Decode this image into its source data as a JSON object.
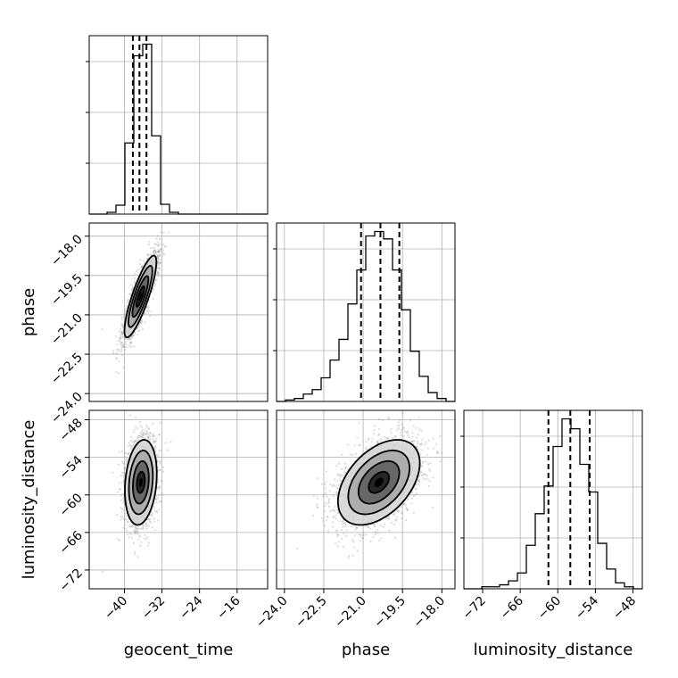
{
  "chart_data": {
    "type": "corner",
    "grid": true,
    "parameters": [
      "geocent_time",
      "phase",
      "luminosity_distance"
    ],
    "axes": {
      "geocent_time": {
        "label": "geocent_time",
        "range": [
          -47.5,
          -9.5
        ],
        "ticks": [
          -40,
          -32,
          -24,
          -16
        ],
        "tick_labels": [
          "−40",
          "−32",
          "−24",
          "−16"
        ]
      },
      "phase": {
        "label": "phase",
        "range": [
          -24.3,
          -17.5
        ],
        "ticks": [
          -24.0,
          -22.5,
          -21.0,
          -19.5,
          -18.0
        ],
        "tick_labels": [
          "−24.0",
          "−22.5",
          "−21.0",
          "−19.5",
          "−18.0"
        ]
      },
      "luminosity_distance": {
        "label": "luminosity_distance",
        "range": [
          -75.0,
          -46.5
        ],
        "ticks": [
          -72,
          -66,
          -60,
          -54,
          -48
        ],
        "tick_labels": [
          "−72",
          "−66",
          "−60",
          "−54",
          "−48"
        ]
      }
    },
    "histograms": {
      "geocent_time": {
        "bin_edges": [
          -47.5,
          -45.6,
          -43.7,
          -41.8,
          -39.9,
          -38.0,
          -36.1,
          -34.2,
          -32.3,
          -30.4,
          -28.5,
          -26.6,
          -24.7,
          -22.8,
          -20.9,
          -19.0,
          -17.1,
          -15.2,
          -13.3,
          -11.4,
          -9.5
        ],
        "counts": [
          0,
          0,
          2,
          10,
          80,
          178,
          191,
          88,
          11,
          2,
          0,
          0,
          0,
          0,
          0,
          0,
          0,
          0,
          0,
          0
        ],
        "quantiles": [
          -38.2,
          -36.8,
          -35.3
        ]
      },
      "phase": {
        "bin_edges": [
          -24.3,
          -23.96,
          -23.62,
          -23.28,
          -22.94,
          -22.6,
          -22.26,
          -21.92,
          -21.58,
          -21.24,
          -20.9,
          -20.56,
          -20.22,
          -19.88,
          -19.54,
          -19.2,
          -18.86,
          -18.52,
          -18.18,
          -17.84,
          -17.5
        ],
        "counts": [
          0,
          1,
          2,
          5,
          8,
          16,
          28,
          42,
          66,
          89,
          112,
          115,
          110,
          89,
          62,
          34,
          17,
          6,
          2,
          0
        ],
        "quantiles": [
          -21.08,
          -20.34,
          -19.62
        ]
      },
      "luminosity_distance": {
        "bin_edges": [
          -75.0,
          -73.575,
          -72.15,
          -70.725,
          -69.3,
          -67.875,
          -66.45,
          -65.025,
          -63.6,
          -62.175,
          -60.75,
          -59.325,
          -57.9,
          -56.475,
          -55.05,
          -53.625,
          -52.2,
          -50.775,
          -49.35,
          -47.925,
          -46.5
        ],
        "counts": [
          0,
          0,
          1,
          1,
          2,
          4,
          8,
          22,
          38,
          52,
          72,
          86,
          81,
          63,
          49,
          23,
          10,
          3,
          1,
          0
        ],
        "quantiles": [
          -61.5,
          -58.0,
          -54.9
        ]
      }
    },
    "scatter_2d": [
      {
        "x": "geocent_time",
        "y": "phase",
        "mean": [
          -36.6,
          -20.3
        ],
        "std": [
          1.7,
          0.78
        ],
        "correlation": 0.84
      },
      {
        "x": "geocent_time",
        "y": "luminosity_distance",
        "mean": [
          -36.5,
          -58.0
        ],
        "std": [
          1.7,
          3.4
        ],
        "correlation": 0.2
      },
      {
        "x": "phase",
        "y": "luminosity_distance",
        "mean": [
          -20.4,
          -58.0
        ],
        "std": [
          0.78,
          3.4
        ],
        "correlation": 0.45
      }
    ],
    "contour_levels_sigma": [
      0.5,
      1.0,
      1.5,
      2.0
    ],
    "colors": {
      "line": "#000000",
      "grid": "#b0b0b0",
      "points": "#9a9a9a",
      "background": "#ffffff"
    }
  }
}
